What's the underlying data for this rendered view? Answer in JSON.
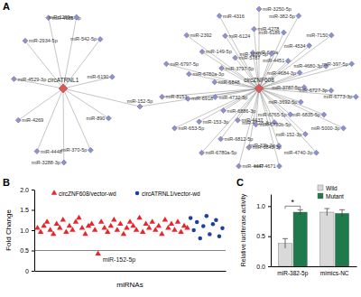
{
  "network": {
    "panel_label": "A",
    "target_color": "#8e90d8",
    "hubs": [
      {
        "label": "circATRNL1",
        "color": "#e05555",
        "targets": [
          "miR-4685-5p",
          "miR-1269a",
          "miR-542-5p",
          "miR-6190",
          "miR-890",
          "miR-370-5p",
          "miR-3288-3p",
          "miR-4448",
          "miR-4269",
          "miR-4529-3p",
          "miR-2934-5p",
          "miR-152-5p"
        ]
      },
      {
        "label": "circZNF608",
        "color": "#e05555",
        "targets": [
          "miR-3250-5p",
          "miR-6186",
          "miR-4451",
          "miR-382-5p",
          "miR-4534",
          "miR-4684-3p",
          "miR-7150",
          "miR-4680-3p",
          "miR-3787-5p",
          "miR-397-5p",
          "miR-6727-3p",
          "miR-3692-5p",
          "miR-6773-3p",
          "miR-6835-5p",
          "miR-6765-5p",
          "miR-5000-3p",
          "miR-152-3p",
          "miR-4728-3p",
          "miR-4740-3p",
          "miR-33b-3p",
          "miR-6780b-5p",
          "miR-4671",
          "miR-6843-3p",
          "miR-4437",
          "miR-4447",
          "miR-6812-5p",
          "miR-6886-3p",
          "miR-6780a-5p",
          "miR-153-3p",
          "miR-4732-5p",
          "miR-653-5p",
          "miR-6918",
          "miR-6848",
          "miR-8153",
          "miR-6780a-3p",
          "miR-3797-5p",
          "miR-6797-5p",
          "miR-149-5p",
          "miR-5787",
          "miR-2392",
          "miR-6124",
          "miR-649a",
          "miR-4316",
          "miR-4278",
          "miR-1180-5p",
          "miR-152-5p"
        ]
      }
    ]
  },
  "chart_data": [
    {
      "type": "scatter",
      "panel_label": "B",
      "x_label": "miRNAs",
      "y_label": "Fold Change",
      "xlim": [
        0,
        60
      ],
      "xticks": [],
      "ylim": [
        0,
        2
      ],
      "yticks": [
        0,
        0.5,
        {
          "value": 1,
          "label": "1.0"
        },
        1.5,
        {
          "value": 2,
          "label": "2.0"
        }
      ],
      "tick_labels": "y",
      "legend": "top",
      "hline": 0.5,
      "annotation": {
        "text": "miR-152-5p",
        "x": 20,
        "y": 0.42
      },
      "series": [
        {
          "name": "circZNF608/vector-wd",
          "color": "#e8262b",
          "marker": "triangle",
          "x": [
            1,
            2,
            3,
            4,
            5,
            6,
            7,
            8,
            9,
            10,
            11,
            12,
            13,
            14,
            15,
            16,
            17,
            18,
            19,
            20,
            21,
            22,
            23,
            24,
            25,
            26,
            27,
            28,
            29,
            30,
            31,
            32,
            33,
            34,
            35,
            36,
            37,
            38,
            39,
            40,
            41,
            42,
            43,
            44,
            45,
            46,
            47,
            48
          ],
          "values": [
            1.05,
            0.95,
            1.1,
            1.2,
            1.0,
            0.9,
            1.15,
            1.05,
            1.25,
            0.95,
            1.1,
            1.0,
            1.2,
            1.3,
            1.05,
            0.9,
            1.1,
            1.15,
            1.0,
            0.42,
            1.2,
            1.05,
            0.95,
            1.1,
            1.25,
            1.0,
            1.15,
            0.9,
            1.05,
            1.2,
            1.1,
            1.0,
            1.3,
            0.95,
            1.15,
            1.05,
            1.2,
            1.0,
            1.1,
            0.9,
            1.25,
            1.05,
            1.15,
            1.0,
            1.2,
            0.95,
            1.1,
            1.05
          ]
        },
        {
          "name": "circATRNL1/vector-wd",
          "color": "#1f3f9f",
          "marker": "circle",
          "x": [
            49,
            50,
            51,
            52,
            53,
            54,
            55,
            56,
            57,
            58,
            59
          ],
          "values": [
            1.3,
            1.0,
            1.2,
            0.8,
            1.1,
            1.35,
            0.9,
            1.15,
            1.25,
            0.85,
            1.05
          ]
        }
      ]
    },
    {
      "type": "bar",
      "panel_label": "C",
      "y_label": "Relative luciferase activity",
      "categories": [
        "miR-382-5p",
        "mimics-NC"
      ],
      "ylim": [
        0,
        1.2
      ],
      "yticks": [
        {
          "value": 0,
          "label": "0.0"
        },
        0.5,
        {
          "value": 1,
          "label": "1.0"
        }
      ],
      "legend": "top-right",
      "annotation": "*",
      "series": [
        {
          "name": "Wild",
          "color": "#d9d9d9",
          "values": [
            0.38,
            0.9
          ],
          "errors": [
            0.08,
            0.06
          ]
        },
        {
          "name": "Mutant",
          "color": "#1e7a4a",
          "values": [
            0.9,
            0.88
          ],
          "errors": [
            0.04,
            0.06
          ]
        }
      ]
    }
  ]
}
